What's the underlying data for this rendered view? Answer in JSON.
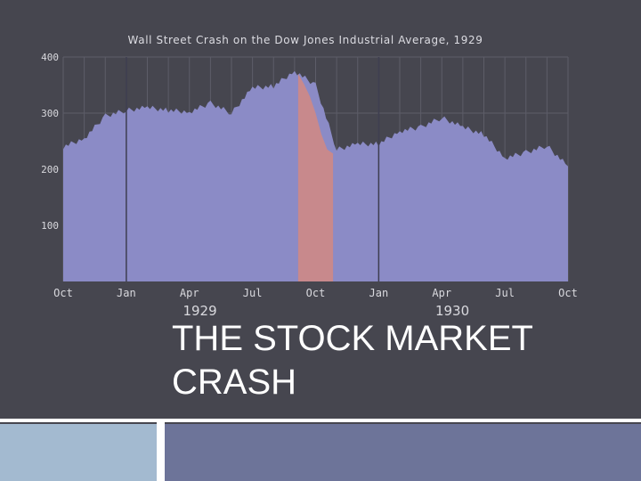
{
  "slide": {
    "title_line1": "THE STOCK MARKET",
    "title_line2": "CRASH"
  },
  "colors": {
    "background": "#46464f",
    "area_fill": "#8b8bc6",
    "crash_fill": "#c8898c",
    "grid": "#5d5d68",
    "footer_left": "#a3bad0",
    "footer_right": "#6d7499"
  },
  "chart_data": {
    "type": "area",
    "title": "Wall Street Crash on the Dow Jones Industrial Average, 1929",
    "xlabel": "",
    "ylabel": "",
    "ylim": [
      0,
      400
    ],
    "y_ticks": [
      "100",
      "200",
      "300",
      "400"
    ],
    "x_ticks": [
      "Oct",
      "Jan",
      "Apr",
      "Jul",
      "Oct",
      "Jan",
      "Apr",
      "Jul",
      "Oct"
    ],
    "year_labels": [
      "1929",
      "1930"
    ],
    "grid": true,
    "highlight_range": [
      "Sep 1929",
      "Nov 1929"
    ],
    "series": [
      {
        "x": [
          "Oct 1928",
          "Nov 1928",
          "Dec 1928",
          "Jan 1929",
          "Feb 1929",
          "Mar 1929",
          "Apr 1929",
          "May 1929",
          "Jun 1929",
          "Jul 1929",
          "Aug 1929",
          "Sep 1929",
          "Oct 1929",
          "Nov 1929",
          "Dec 1929",
          "Jan 1930",
          "Feb 1930",
          "Mar 1930",
          "Apr 1930",
          "May 1930",
          "Jun 1930",
          "Jul 1930",
          "Aug 1930",
          "Sep 1930",
          "Oct 1930"
        ],
        "values": [
          240,
          255,
          295,
          305,
          310,
          305,
          302,
          318,
          300,
          345,
          348,
          375,
          350,
          235,
          245,
          245,
          268,
          275,
          292,
          275,
          262,
          220,
          230,
          242,
          205
        ]
      }
    ]
  }
}
